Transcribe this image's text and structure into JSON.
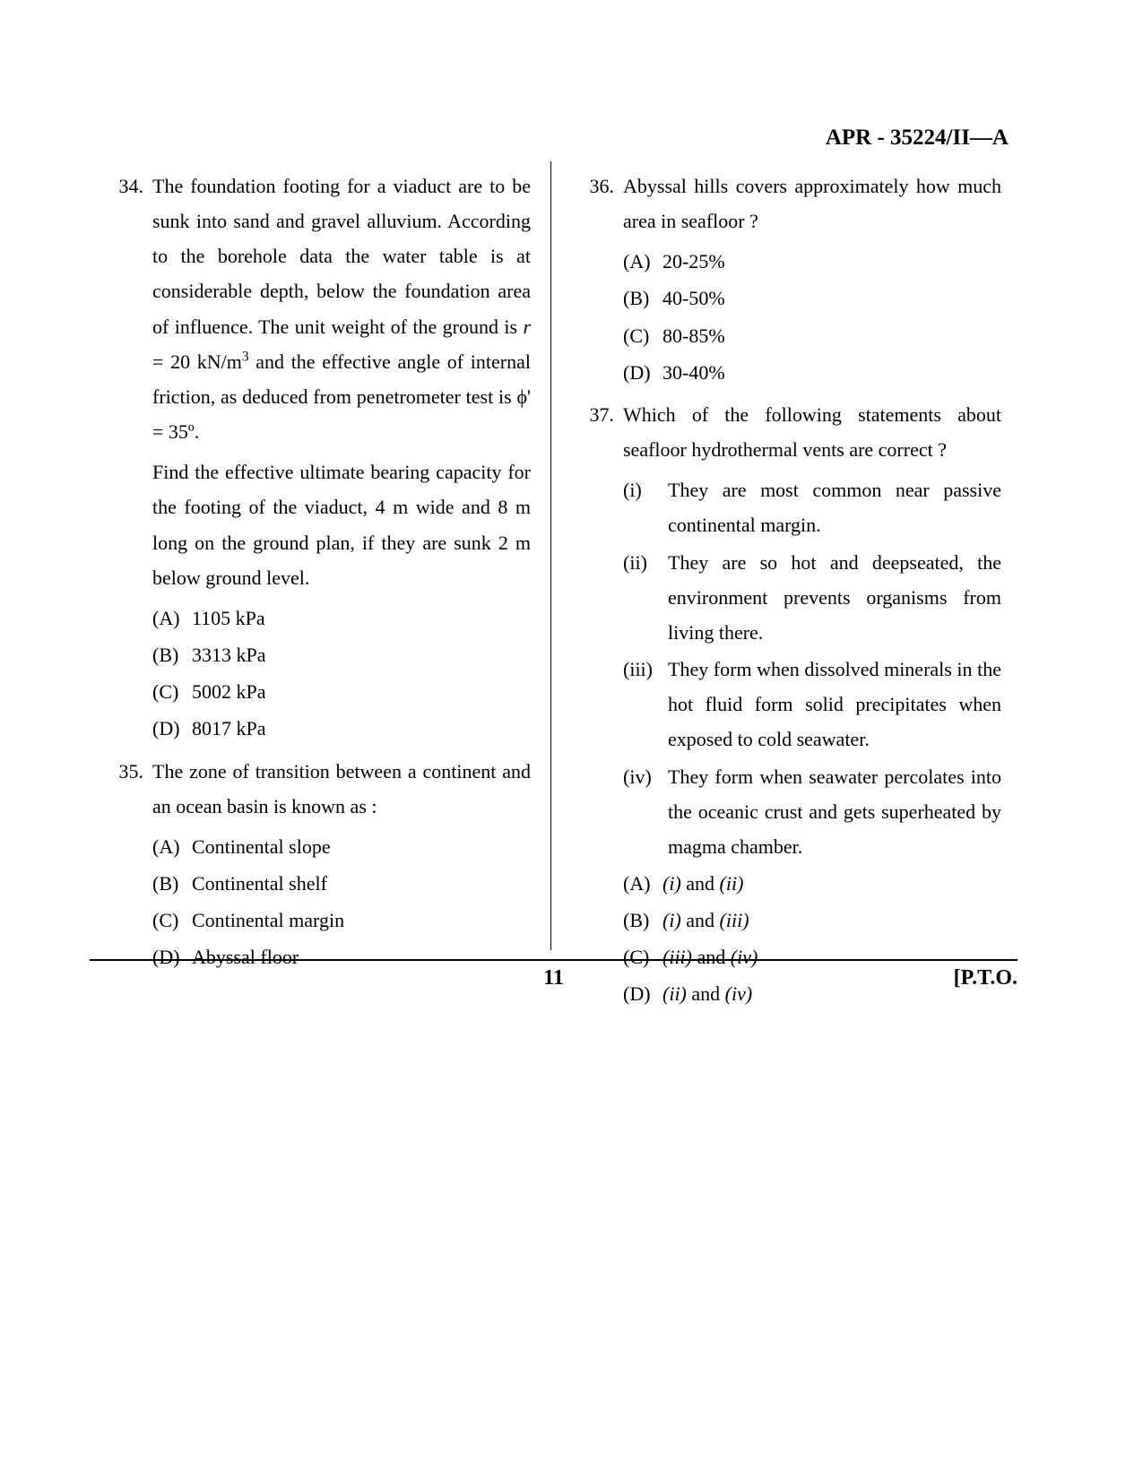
{
  "header": {
    "code": "APR - 35224/II—A"
  },
  "footer": {
    "page": "11",
    "pto": "[P.T.O."
  },
  "left": {
    "q34": {
      "num": "34.",
      "para1_pre": "The foundation footing for a viaduct are to be sunk into sand and gravel alluvium. According to the borehole data the water table is at considerable depth, below the foundation area of influence. The unit weight of the ground is ",
      "para1_r": "r",
      "para1_mid": " = 20 kN/m",
      "para1_sup": "3",
      "para1_post": " and the effective angle of internal friction, as deduced from penetrometer test is ",
      "para1_phi": "ϕ'",
      "para1_end": " = 35º.",
      "para2": "Find the effective ultimate bearing capacity for the footing of the viaduct, 4 m wide and 8 m long on the ground plan, if they are sunk 2 m below ground level.",
      "A": {
        "l": "(A)",
        "t": "1105 kPa"
      },
      "B": {
        "l": "(B)",
        "t": "3313 kPa"
      },
      "C": {
        "l": "(C)",
        "t": "5002 kPa"
      },
      "D": {
        "l": "(D)",
        "t": "8017 kPa"
      }
    },
    "q35": {
      "num": "35.",
      "text": "The zone of transition between a continent and an ocean basin is known as :",
      "A": {
        "l": "(A)",
        "t": "Continental slope"
      },
      "B": {
        "l": "(B)",
        "t": "Continental shelf"
      },
      "C": {
        "l": "(C)",
        "t": "Continental margin"
      },
      "D": {
        "l": "(D)",
        "t": "Abyssal floor"
      }
    }
  },
  "right": {
    "q36": {
      "num": "36.",
      "text": "Abyssal hills covers approximately how much area in seafloor ?",
      "A": {
        "l": "(A)",
        "t": "20-25%"
      },
      "B": {
        "l": "(B)",
        "t": "40-50%"
      },
      "C": {
        "l": "(C)",
        "t": "80-85%"
      },
      "D": {
        "l": "(D)",
        "t": "30-40%"
      }
    },
    "q37": {
      "num": "37.",
      "text": "Which of the following statements about seafloor hydrothermal vents are correct ?",
      "s1": {
        "l": "(i)",
        "t": "They are most common near passive continental margin."
      },
      "s2": {
        "l": "(ii)",
        "t": "They are so hot and deepseated, the environment prevents organisms from living there."
      },
      "s3": {
        "l": "(iii)",
        "t": "They form when dissolved minerals in the hot fluid form solid precipitates when exposed to cold seawater."
      },
      "s4": {
        "l": "(iv)",
        "t": "They form when seawater percolates into the oceanic crust and gets superheated by magma chamber."
      },
      "A": {
        "l": "(A)",
        "i1": "(i)",
        "and": " and ",
        "i2": "(ii)"
      },
      "B": {
        "l": "(B)",
        "i1": "(i)",
        "and": " and ",
        "i2": "(iii)"
      },
      "C": {
        "l": "(C)",
        "i1": "(iii)",
        "and": " and ",
        "i2": "(iv)"
      },
      "D": {
        "l": "(D)",
        "i1": "(ii)",
        "and": " and ",
        "i2": "(iv)"
      }
    }
  }
}
